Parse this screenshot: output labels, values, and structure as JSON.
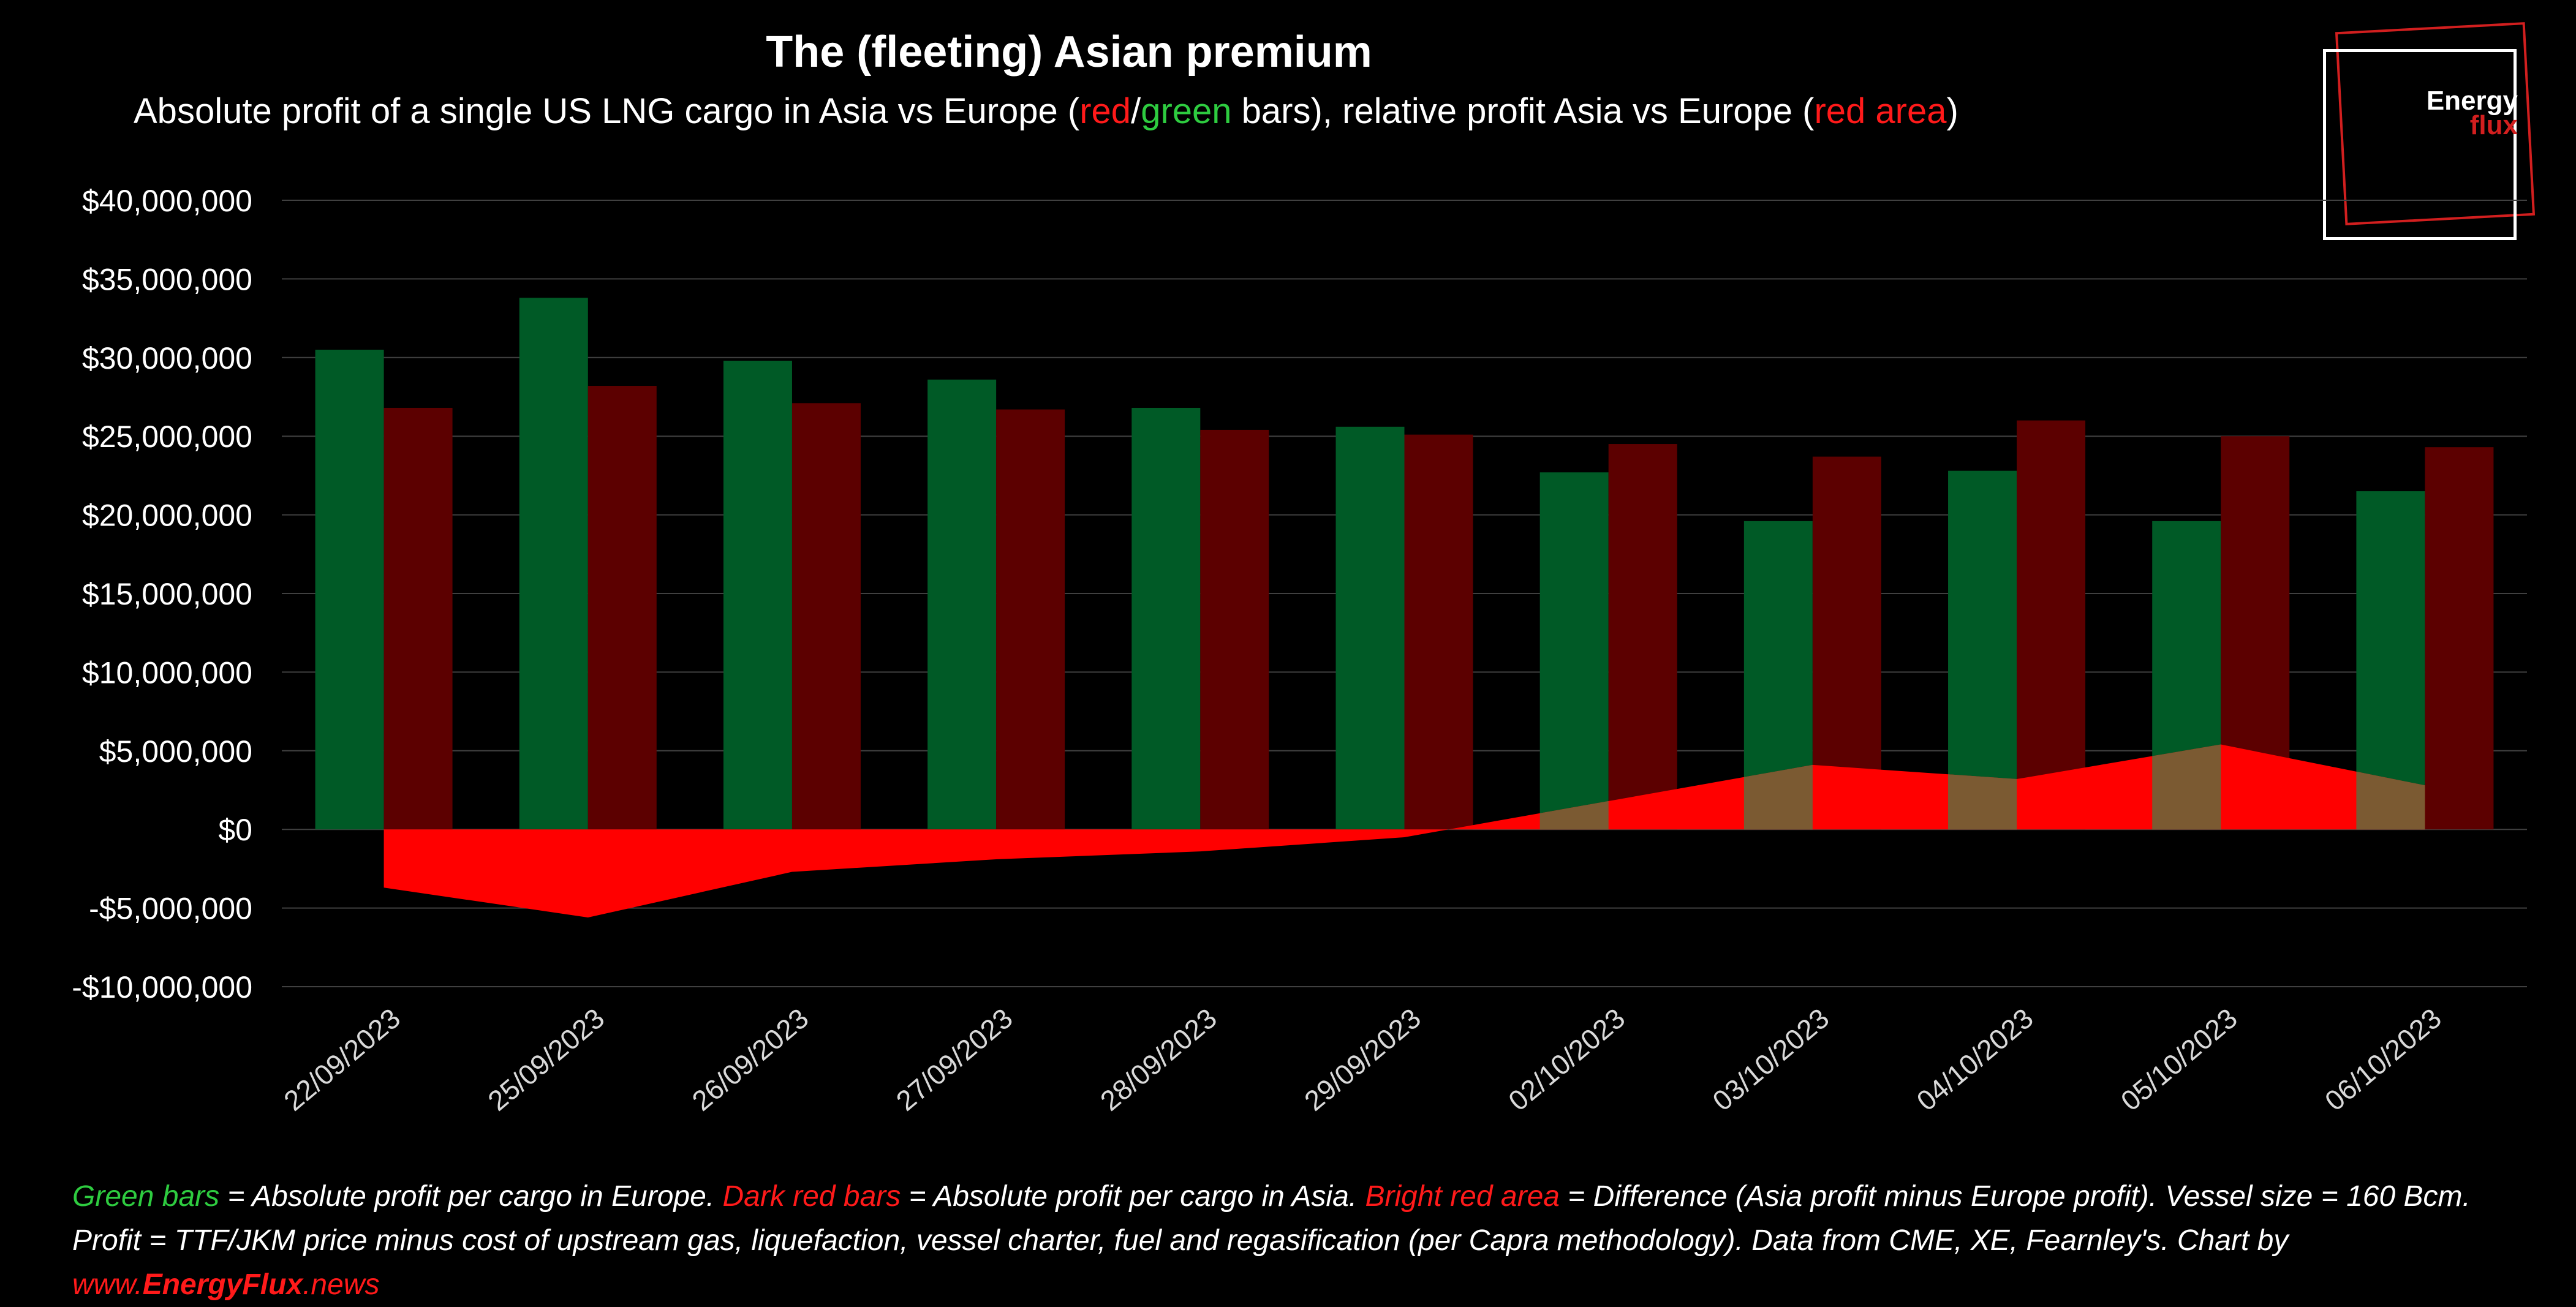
{
  "title": "The (fleeting) Asian premium",
  "subtitle": {
    "part1": "Absolute profit of a single US LNG cargo in Asia vs Europe (",
    "red_word": "red",
    "slash": "/",
    "green_word": "green",
    "part2": " bars), relative profit Asia vs Europe (",
    "red_area_word": "red area",
    "part3": ")"
  },
  "logo": {
    "line1": "Energy",
    "line2": "flux"
  },
  "footnote": {
    "green_label": "Green bars",
    "green_text": " = Absolute profit per cargo in Europe. ",
    "darkred_label": "Dark red bars",
    "darkred_text": " = Absolute profit per cargo in Asia. ",
    "brightred_label": "Bright red area",
    "brightred_text": " = Difference (Asia profit minus Europe profit). Vessel size = 160 Bcm.",
    "line2": "Profit = TTF/JKM price minus cost of upstream gas, liquefaction, vessel charter, fuel and regasification (per Capra methodology). Data from CME, XE, Fearnley's. Chart by",
    "link_prefix": "www.",
    "link_bold": "EnergyFlux",
    "link_suffix": ".news"
  },
  "chart_data": {
    "type": "bar",
    "categories": [
      "22/09/2023",
      "25/09/2023",
      "26/09/2023",
      "27/09/2023",
      "28/09/2023",
      "29/09/2023",
      "02/10/2023",
      "03/10/2023",
      "04/10/2023",
      "05/10/2023",
      "06/10/2023"
    ],
    "series": [
      {
        "type": "bar",
        "values": [
          30500000,
          33800000,
          29800000,
          28600000,
          26800000,
          25600000,
          22700000,
          19600000,
          22800000,
          19600000,
          21500000
        ]
      },
      {
        "type": "bar",
        "values": [
          26800000,
          28200000,
          27100000,
          26700000,
          25400000,
          25100000,
          24500000,
          23700000,
          26000000,
          25000000,
          24300000
        ]
      },
      {
        "type": "area",
        "values": [
          -3700000,
          -5600000,
          -2700000,
          -1900000,
          -1400000,
          -500000,
          1800000,
          4100000,
          3200000,
          5400000,
          2800000
        ]
      }
    ],
    "colors": {
      "europe": "#005a26",
      "asia": "#5c0000",
      "difference": "#ff0000",
      "overlap": "#7b5a32",
      "grid": "#404040"
    },
    "ylim": [
      -10000000,
      40000000
    ],
    "yticks": [
      40000000,
      35000000,
      30000000,
      25000000,
      20000000,
      15000000,
      10000000,
      5000000,
      0,
      -5000000,
      -10000000
    ],
    "ytick_labels": [
      "$40,000,000",
      "$35,000,000",
      "$30,000,000",
      "$25,000,000",
      "$20,000,000",
      "$15,000,000",
      "$10,000,000",
      "$5,000,000",
      "$0",
      "-$5,000,000",
      "-$10,000,000"
    ],
    "grid": true
  }
}
